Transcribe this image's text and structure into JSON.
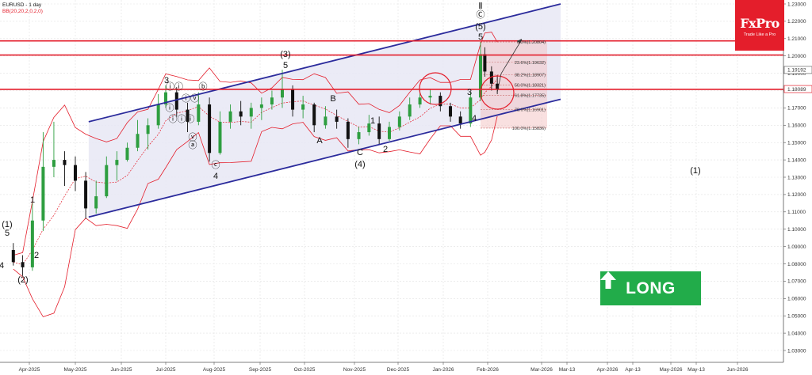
{
  "header": {
    "symbol": "EURUSD - 1 day",
    "indicator": "BB(20,20,2,0,2,0)"
  },
  "brand": {
    "name": "FxPro",
    "tagline": "Trade Like a Pro"
  },
  "signal": {
    "label": "LONG",
    "color": "#22ac4a"
  },
  "colors": {
    "up_candle": "#2e9e40",
    "down_candle": "#111111",
    "resistance_lines": "#e41e2b",
    "channel": "#2b2b9c",
    "bollinger": "#e41e2b",
    "fib_zone": "#f3c2c2"
  },
  "chart_data": {
    "type": "candlestick",
    "title": "EURUSD - 1 day",
    "y_axis": {
      "min": 1.02,
      "max": 1.23,
      "ticks": [
        "1.23000",
        "1.22000",
        "1.21000",
        "1.20000",
        "1.19000",
        "1.18000",
        "1.17000",
        "1.16000",
        "1.15000",
        "1.14000",
        "1.13000",
        "1.12000",
        "1.11000",
        "1.10000",
        "1.09000",
        "1.08000",
        "1.07000",
        "1.06000",
        "1.05000",
        "1.04000",
        "1.03000"
      ],
      "current_prices": [
        {
          "label": "1.19192",
          "value": 1.19192
        },
        {
          "label": "1.18089",
          "value": 1.18089
        }
      ]
    },
    "x_axis": {
      "ticks": [
        "Apr-2025",
        "May-2025",
        "Jun-2025",
        "Jul-2025",
        "Aug-2025",
        "Sep-2025",
        "Oct-2025",
        "Nov-2025",
        "Dec-2025",
        "Jan-2026",
        "Feb-2026",
        "Mar-2026",
        "Mar-13",
        "Apr-2026",
        "Apr-13",
        "May-2026",
        "May-13",
        "Jun-2026"
      ]
    },
    "horizontal_lines": [
      {
        "value": 1.2087,
        "color": "#e41e2b"
      },
      {
        "value": 1.2005,
        "color": "#e41e2b"
      },
      {
        "value": 1.1807,
        "color": "#e41e2b"
      }
    ],
    "channel": {
      "upper": [
        {
          "date": "2025-05-10",
          "value": 1.162
        },
        {
          "date": "2026-03-10",
          "value": 1.23
        }
      ],
      "lower": [
        {
          "date": "2025-05-10",
          "value": 1.107
        },
        {
          "date": "2026-03-10",
          "value": 1.175
        }
      ]
    },
    "fibonacci": [
      {
        "label": "0.0%(1.20804)",
        "value": 1.20804
      },
      {
        "label": "23.6%(1.19632)",
        "value": 1.19632
      },
      {
        "label": "38.2%(1.18907)",
        "value": 1.18907
      },
      {
        "label": "50.0%(1.18321)",
        "value": 1.18321
      },
      {
        "label": "61.8%(1.17735)",
        "value": 1.17735
      },
      {
        "label": "78.6%(1.16901)",
        "value": 1.16901
      },
      {
        "label": "100.0%(1.15836)",
        "value": 1.15836
      }
    ],
    "wave_labels": [
      "(1)",
      "5",
      "4",
      "(2)",
      "1",
      "2",
      "3",
      "ⓘ",
      "ⓘⓘ",
      "ⓘⓘⓘ",
      "ⓘⓥ",
      "ⓥ",
      "ⓐ",
      "ⓑ",
      "ⓒ",
      "4",
      "(3)",
      "5",
      "A",
      "B",
      "C",
      "(4)",
      "1",
      "2",
      "3",
      "4",
      "5",
      "(5)",
      "Ⓒ",
      "Ⅱ",
      "(1)"
    ],
    "candles": [
      {
        "date": "2025-03-20",
        "open": 1.088,
        "high": 1.092,
        "low": 1.079,
        "close": 1.081
      },
      {
        "date": "2025-03-27",
        "open": 1.081,
        "high": 1.085,
        "low": 1.073,
        "close": 1.078
      },
      {
        "date": "2025-04-03",
        "open": 1.078,
        "high": 1.115,
        "low": 1.076,
        "close": 1.105
      },
      {
        "date": "2025-04-10",
        "open": 1.105,
        "high": 1.156,
        "low": 1.099,
        "close": 1.136
      },
      {
        "date": "2025-04-17",
        "open": 1.136,
        "high": 1.162,
        "low": 1.13,
        "close": 1.14
      },
      {
        "date": "2025-04-24",
        "open": 1.14,
        "high": 1.145,
        "low": 1.125,
        "close": 1.137
      },
      {
        "date": "2025-05-01",
        "open": 1.137,
        "high": 1.142,
        "low": 1.122,
        "close": 1.128
      },
      {
        "date": "2025-05-08",
        "open": 1.128,
        "high": 1.133,
        "low": 1.106,
        "close": 1.112
      },
      {
        "date": "2025-05-15",
        "open": 1.112,
        "high": 1.128,
        "low": 1.109,
        "close": 1.119
      },
      {
        "date": "2025-05-22",
        "open": 1.119,
        "high": 1.142,
        "low": 1.118,
        "close": 1.137
      },
      {
        "date": "2025-05-29",
        "open": 1.137,
        "high": 1.145,
        "low": 1.128,
        "close": 1.14
      },
      {
        "date": "2025-06-05",
        "open": 1.14,
        "high": 1.15,
        "low": 1.139,
        "close": 1.147
      },
      {
        "date": "2025-06-12",
        "open": 1.147,
        "high": 1.163,
        "low": 1.145,
        "close": 1.155
      },
      {
        "date": "2025-06-19",
        "open": 1.155,
        "high": 1.164,
        "low": 1.146,
        "close": 1.16
      },
      {
        "date": "2025-06-26",
        "open": 1.16,
        "high": 1.178,
        "low": 1.158,
        "close": 1.172
      },
      {
        "date": "2025-07-01",
        "open": 1.172,
        "high": 1.183,
        "low": 1.17,
        "close": 1.179
      },
      {
        "date": "2025-07-08",
        "open": 1.179,
        "high": 1.182,
        "low": 1.165,
        "close": 1.169
      },
      {
        "date": "2025-07-15",
        "open": 1.169,
        "high": 1.173,
        "low": 1.156,
        "close": 1.162
      },
      {
        "date": "2025-07-22",
        "open": 1.162,
        "high": 1.179,
        "low": 1.16,
        "close": 1.172
      },
      {
        "date": "2025-07-29",
        "open": 1.172,
        "high": 1.176,
        "low": 1.139,
        "close": 1.144
      },
      {
        "date": "2025-08-05",
        "open": 1.144,
        "high": 1.168,
        "low": 1.143,
        "close": 1.162
      },
      {
        "date": "2025-08-12",
        "open": 1.162,
        "high": 1.172,
        "low": 1.158,
        "close": 1.168
      },
      {
        "date": "2025-08-19",
        "open": 1.168,
        "high": 1.174,
        "low": 1.16,
        "close": 1.165
      },
      {
        "date": "2025-08-26",
        "open": 1.165,
        "high": 1.173,
        "low": 1.158,
        "close": 1.17
      },
      {
        "date": "2025-09-02",
        "open": 1.17,
        "high": 1.176,
        "low": 1.163,
        "close": 1.172
      },
      {
        "date": "2025-09-09",
        "open": 1.172,
        "high": 1.18,
        "low": 1.169,
        "close": 1.176
      },
      {
        "date": "2025-09-16",
        "open": 1.176,
        "high": 1.192,
        "low": 1.17,
        "close": 1.181
      },
      {
        "date": "2025-09-23",
        "open": 1.181,
        "high": 1.183,
        "low": 1.165,
        "close": 1.169
      },
      {
        "date": "2025-09-30",
        "open": 1.169,
        "high": 1.177,
        "low": 1.164,
        "close": 1.172
      },
      {
        "date": "2025-10-07",
        "open": 1.172,
        "high": 1.173,
        "low": 1.156,
        "close": 1.16
      },
      {
        "date": "2025-10-14",
        "open": 1.16,
        "high": 1.171,
        "low": 1.158,
        "close": 1.165
      },
      {
        "date": "2025-10-21",
        "open": 1.165,
        "high": 1.169,
        "low": 1.158,
        "close": 1.162
      },
      {
        "date": "2025-10-28",
        "open": 1.162,
        "high": 1.164,
        "low": 1.147,
        "close": 1.152
      },
      {
        "date": "2025-11-04",
        "open": 1.152,
        "high": 1.159,
        "low": 1.149,
        "close": 1.156
      },
      {
        "date": "2025-11-11",
        "open": 1.156,
        "high": 1.166,
        "low": 1.154,
        "close": 1.161
      },
      {
        "date": "2025-11-18",
        "open": 1.161,
        "high": 1.165,
        "low": 1.149,
        "close": 1.152
      },
      {
        "date": "2025-11-25",
        "open": 1.152,
        "high": 1.162,
        "low": 1.151,
        "close": 1.159
      },
      {
        "date": "2025-12-02",
        "open": 1.159,
        "high": 1.168,
        "low": 1.157,
        "close": 1.165
      },
      {
        "date": "2025-12-09",
        "open": 1.165,
        "high": 1.176,
        "low": 1.163,
        "close": 1.172
      },
      {
        "date": "2025-12-16",
        "open": 1.172,
        "high": 1.181,
        "low": 1.17,
        "close": 1.176
      },
      {
        "date": "2025-12-23",
        "open": 1.176,
        "high": 1.181,
        "low": 1.172,
        "close": 1.177
      },
      {
        "date": "2025-12-30",
        "open": 1.177,
        "high": 1.179,
        "low": 1.168,
        "close": 1.171
      },
      {
        "date": "2026-01-06",
        "open": 1.171,
        "high": 1.173,
        "low": 1.162,
        "close": 1.165
      },
      {
        "date": "2026-01-13",
        "open": 1.165,
        "high": 1.168,
        "low": 1.158,
        "close": 1.161
      },
      {
        "date": "2026-01-20",
        "open": 1.161,
        "high": 1.179,
        "low": 1.159,
        "close": 1.176
      },
      {
        "date": "2026-01-27",
        "open": 1.176,
        "high": 1.208,
        "low": 1.174,
        "close": 1.201
      },
      {
        "date": "2026-01-30",
        "open": 1.201,
        "high": 1.205,
        "low": 1.188,
        "close": 1.191
      },
      {
        "date": "2026-02-03",
        "open": 1.191,
        "high": 1.194,
        "low": 1.18,
        "close": 1.184
      },
      {
        "date": "2026-02-06",
        "open": 1.184,
        "high": 1.189,
        "low": 1.178,
        "close": 1.1809
      }
    ]
  }
}
